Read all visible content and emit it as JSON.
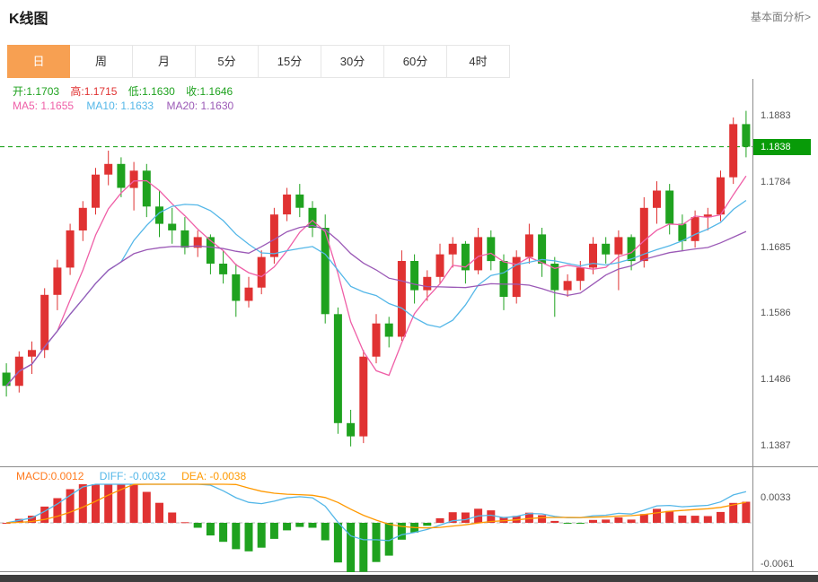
{
  "header": {
    "title": "K线图",
    "analysis_link": "基本面分析>"
  },
  "tabs": {
    "items": [
      {
        "label": "日",
        "active": true
      },
      {
        "label": "周",
        "active": false
      },
      {
        "label": "月",
        "active": false
      },
      {
        "label": "5分",
        "active": false
      },
      {
        "label": "15分",
        "active": false
      },
      {
        "label": "30分",
        "active": false
      },
      {
        "label": "60分",
        "active": false
      },
      {
        "label": "4时",
        "active": false
      }
    ]
  },
  "ohlc_bar": {
    "open": "开:1.1703",
    "high": "高:1.1715",
    "low": "低:1.1630",
    "close": "收:1.1646"
  },
  "ma_bar": {
    "ma5": "MA5: 1.1655",
    "ma10": "MA10: 1.1633",
    "ma20": "MA20: 1.1630"
  },
  "macd_bar": {
    "macd": "MACD:0.0012",
    "diff": "DIFF: -0.0032",
    "dea": "DEA: -0.0038"
  },
  "colors": {
    "up": "#e03232",
    "down": "#1fa21f",
    "ma5": "#ef5fa7",
    "ma10": "#54b7e8",
    "ma20": "#9b59b6",
    "diff": "#54b7e8",
    "dea": "#ff9900",
    "price_line": "#089b08",
    "price_tag_bg": "#089b08",
    "tab_active": "#f7a052",
    "scrollbar": "#3f3f3f",
    "axis_text": "#555555",
    "grid": "#bbbbbb"
  },
  "chart_data": {
    "type": "candlestick",
    "title": "K线图 (daily K-line with MA5/MA10/MA20 and MACD sub-chart)",
    "price_axis_labels": [
      "1.1883",
      "1.1784",
      "1.1685",
      "1.1586",
      "1.1486",
      "1.1387"
    ],
    "current_price": "1.1838",
    "price_range": [
      1.1357,
      1.194
    ],
    "macd_axis_labels": [
      "0.0033",
      "-0.0061"
    ],
    "macd_range": [
      -0.00711,
      0.00559
    ],
    "indicators": {
      "ma_periods": [
        5,
        10,
        20
      ],
      "macd_params": [
        12,
        26,
        9
      ]
    },
    "candle_format": [
      "open",
      "high",
      "low",
      "close"
    ],
    "candles": [
      [
        1.1498,
        1.1512,
        1.1462,
        1.1478
      ],
      [
        1.1478,
        1.153,
        1.1468,
        1.1522
      ],
      [
        1.1522,
        1.1545,
        1.1496,
        1.1532
      ],
      [
        1.1532,
        1.1625,
        1.152,
        1.1615
      ],
      [
        1.1615,
        1.1668,
        1.1592,
        1.1656
      ],
      [
        1.1656,
        1.1722,
        1.1645,
        1.1712
      ],
      [
        1.1712,
        1.1756,
        1.1696,
        1.1746
      ],
      [
        1.1746,
        1.1806,
        1.1736,
        1.1796
      ],
      [
        1.1796,
        1.1832,
        1.178,
        1.1812
      ],
      [
        1.1812,
        1.1822,
        1.1762,
        1.1776
      ],
      [
        1.1776,
        1.1815,
        1.1742,
        1.1802
      ],
      [
        1.1802,
        1.1812,
        1.1732,
        1.1748
      ],
      [
        1.1748,
        1.1772,
        1.1702,
        1.1722
      ],
      [
        1.1722,
        1.1746,
        1.1692,
        1.1712
      ],
      [
        1.1712,
        1.1732,
        1.1676,
        1.1686
      ],
      [
        1.1686,
        1.1712,
        1.1672,
        1.1702
      ],
      [
        1.1702,
        1.1706,
        1.1646,
        1.1662
      ],
      [
        1.1662,
        1.1682,
        1.1632,
        1.1646
      ],
      [
        1.1646,
        1.1662,
        1.1582,
        1.1606
      ],
      [
        1.1606,
        1.1642,
        1.1596,
        1.1626
      ],
      [
        1.1626,
        1.1682,
        1.1616,
        1.1672
      ],
      [
        1.1672,
        1.1746,
        1.1662,
        1.1736
      ],
      [
        1.1736,
        1.1776,
        1.1726,
        1.1766
      ],
      [
        1.1766,
        1.1782,
        1.1732,
        1.1746
      ],
      [
        1.1746,
        1.1756,
        1.1702,
        1.1716
      ],
      [
        1.1716,
        1.1736,
        1.1572,
        1.1586
      ],
      [
        1.1586,
        1.1596,
        1.1406,
        1.1422
      ],
      [
        1.1422,
        1.1442,
        1.1387,
        1.1402
      ],
      [
        1.1402,
        1.1532,
        1.1392,
        1.1522
      ],
      [
        1.1522,
        1.1586,
        1.1512,
        1.1572
      ],
      [
        1.1572,
        1.1582,
        1.1536,
        1.1552
      ],
      [
        1.1552,
        1.1682,
        1.1546,
        1.1666
      ],
      [
        1.1666,
        1.1676,
        1.1602,
        1.1622
      ],
      [
        1.1622,
        1.1652,
        1.1606,
        1.1642
      ],
      [
        1.1642,
        1.1692,
        1.1632,
        1.1676
      ],
      [
        1.1676,
        1.1702,
        1.1656,
        1.1692
      ],
      [
        1.1692,
        1.1696,
        1.1632,
        1.1652
      ],
      [
        1.1652,
        1.1716,
        1.1646,
        1.1702
      ],
      [
        1.1702,
        1.1712,
        1.1652,
        1.1666
      ],
      [
        1.1666,
        1.1676,
        1.1592,
        1.1612
      ],
      [
        1.1612,
        1.1682,
        1.1602,
        1.1672
      ],
      [
        1.1672,
        1.1722,
        1.1662,
        1.1706
      ],
      [
        1.1706,
        1.1716,
        1.1642,
        1.1662
      ],
      [
        1.1662,
        1.1672,
        1.1582,
        1.1622
      ],
      [
        1.1622,
        1.1646,
        1.1612,
        1.1636
      ],
      [
        1.1636,
        1.1666,
        1.1622,
        1.1656
      ],
      [
        1.1656,
        1.1702,
        1.1646,
        1.1692
      ],
      [
        1.1692,
        1.1702,
        1.1662,
        1.1676
      ],
      [
        1.1676,
        1.1712,
        1.1622,
        1.1702
      ],
      [
        1.1702,
        1.1706,
        1.1652,
        1.1666
      ],
      [
        1.1666,
        1.1762,
        1.1656,
        1.1746
      ],
      [
        1.1746,
        1.1786,
        1.1722,
        1.1772
      ],
      [
        1.1772,
        1.1782,
        1.1706,
        1.1722
      ],
      [
        1.1722,
        1.1736,
        1.1682,
        1.1696
      ],
      [
        1.1696,
        1.1742,
        1.1686,
        1.1732
      ],
      [
        1.1732,
        1.1746,
        1.1712,
        1.1736
      ],
      [
        1.1736,
        1.1802,
        1.1726,
        1.1792
      ],
      [
        1.1792,
        1.1882,
        1.1782,
        1.1872
      ],
      [
        1.1872,
        1.1892,
        1.1822,
        1.1838
      ]
    ]
  }
}
